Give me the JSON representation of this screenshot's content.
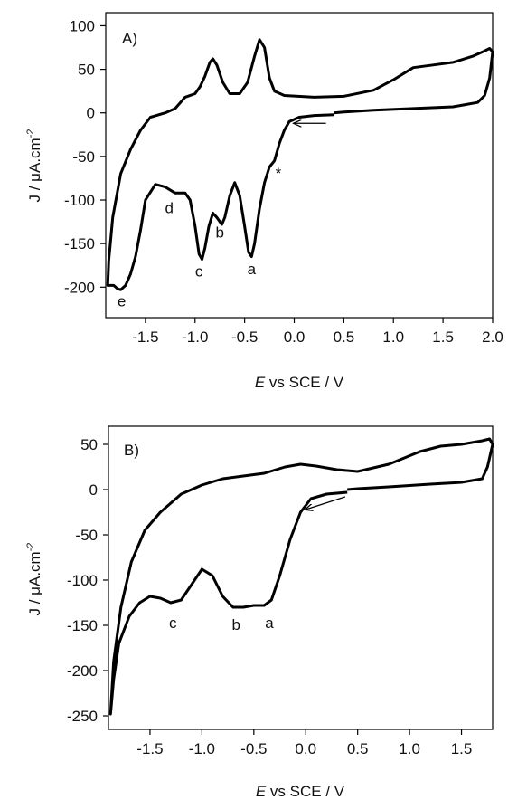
{
  "chart_data": [
    {
      "type": "line",
      "panel_label": "A)",
      "xlabel_italic": "E",
      "xlabel_rest": " vs SCE / V",
      "ylabel_main": "J / μA.cm",
      "ylabel_sup": "-2",
      "xlim": [
        -1.9,
        2.0
      ],
      "ylim": [
        -235,
        115
      ],
      "xticks": [
        -1.5,
        -1.0,
        -0.5,
        0.0,
        0.5,
        1.0,
        1.5,
        2.0
      ],
      "xtick_labels": [
        "-1.5",
        "-1.0",
        "-0.5",
        "0.0",
        "0.5",
        "1.0",
        "1.5",
        "2.0"
      ],
      "yticks": [
        -200,
        -150,
        -100,
        -50,
        0,
        50,
        100
      ],
      "ytick_labels": [
        "-200",
        "-150",
        "-100",
        "-50",
        "0",
        "50",
        "100"
      ],
      "grid": false,
      "line_color": "#000000",
      "series": [
        {
          "points": [
            [
              0.4,
              -2
            ],
            [
              0.2,
              -3
            ],
            [
              0.05,
              -5
            ],
            [
              -0.05,
              -10
            ],
            [
              -0.1,
              -20
            ],
            [
              -0.15,
              -35
            ],
            [
              -0.2,
              -55
            ],
            [
              -0.25,
              -62
            ],
            [
              -0.3,
              -80
            ],
            [
              -0.35,
              -110
            ],
            [
              -0.4,
              -150
            ],
            [
              -0.43,
              -165
            ],
            [
              -0.46,
              -160
            ],
            [
              -0.5,
              -130
            ],
            [
              -0.55,
              -95
            ],
            [
              -0.6,
              -80
            ],
            [
              -0.65,
              -95
            ],
            [
              -0.7,
              -120
            ],
            [
              -0.73,
              -128
            ],
            [
              -0.78,
              -120
            ],
            [
              -0.82,
              -115
            ],
            [
              -0.86,
              -130
            ],
            [
              -0.9,
              -155
            ],
            [
              -0.93,
              -168
            ],
            [
              -0.96,
              -162
            ],
            [
              -1.0,
              -130
            ],
            [
              -1.05,
              -100
            ],
            [
              -1.1,
              -92
            ],
            [
              -1.2,
              -92
            ],
            [
              -1.3,
              -85
            ],
            [
              -1.4,
              -82
            ],
            [
              -1.5,
              -100
            ],
            [
              -1.55,
              -135
            ],
            [
              -1.6,
              -165
            ],
            [
              -1.65,
              -185
            ],
            [
              -1.7,
              -198
            ],
            [
              -1.75,
              -203
            ],
            [
              -1.78,
              -202
            ],
            [
              -1.82,
              -198
            ],
            [
              -1.88,
              -198
            ],
            [
              -1.87,
              -170
            ],
            [
              -1.83,
              -120
            ],
            [
              -1.75,
              -70
            ],
            [
              -1.65,
              -42
            ],
            [
              -1.55,
              -20
            ],
            [
              -1.45,
              -5
            ],
            [
              -1.3,
              0
            ],
            [
              -1.2,
              5
            ],
            [
              -1.1,
              18
            ],
            [
              -1.0,
              22
            ],
            [
              -0.95,
              30
            ],
            [
              -0.9,
              42
            ],
            [
              -0.85,
              58
            ],
            [
              -0.82,
              62
            ],
            [
              -0.78,
              55
            ],
            [
              -0.72,
              35
            ],
            [
              -0.65,
              22
            ],
            [
              -0.55,
              22
            ],
            [
              -0.47,
              35
            ],
            [
              -0.4,
              65
            ],
            [
              -0.35,
              84
            ],
            [
              -0.3,
              75
            ],
            [
              -0.25,
              40
            ],
            [
              -0.2,
              25
            ],
            [
              -0.1,
              20
            ],
            [
              0.2,
              18
            ],
            [
              0.5,
              19
            ],
            [
              0.8,
              26
            ],
            [
              1.0,
              38
            ],
            [
              1.2,
              52
            ],
            [
              1.4,
              55
            ],
            [
              1.6,
              58
            ],
            [
              1.8,
              65
            ],
            [
              1.9,
              70
            ],
            [
              1.97,
              74
            ],
            [
              2.0,
              70
            ],
            [
              1.97,
              40
            ],
            [
              1.92,
              20
            ],
            [
              1.85,
              12
            ],
            [
              1.6,
              7
            ],
            [
              1.2,
              5
            ],
            [
              0.8,
              3
            ],
            [
              0.5,
              1
            ],
            [
              0.4,
              0
            ]
          ]
        }
      ],
      "annotations": [
        {
          "text": "a",
          "x": -0.43,
          "y": -185
        },
        {
          "text": "b",
          "x": -0.75,
          "y": -143
        },
        {
          "text": "c",
          "x": -0.96,
          "y": -188
        },
        {
          "text": "d",
          "x": -1.26,
          "y": -115
        },
        {
          "text": "e",
          "x": -1.74,
          "y": -222
        },
        {
          "text": "*",
          "x": -0.16,
          "y": -75
        }
      ],
      "arrow": {
        "from": [
          0.32,
          -12
        ],
        "to": [
          0.0,
          -12
        ]
      }
    },
    {
      "type": "line",
      "panel_label": "B)",
      "xlabel_italic": "E",
      "xlabel_rest": " vs SCE / V",
      "ylabel_main": "J / μA.cm",
      "ylabel_sup": "-2",
      "xlim": [
        -1.9,
        1.8
      ],
      "ylim": [
        -265,
        70
      ],
      "xticks": [
        -1.5,
        -1.0,
        -0.5,
        0.0,
        0.5,
        1.0,
        1.5
      ],
      "xtick_labels": [
        "-1.5",
        "-1.0",
        "-0.5",
        "0.0",
        "0.5",
        "1.0",
        "1.5"
      ],
      "yticks": [
        -250,
        -200,
        -150,
        -100,
        -50,
        0,
        50
      ],
      "ytick_labels": [
        "-250",
        "-200",
        "-150",
        "-100",
        "-50",
        "0",
        "50"
      ],
      "grid": false,
      "line_color": "#000000",
      "series": [
        {
          "points": [
            [
              0.4,
              -3
            ],
            [
              0.2,
              -5
            ],
            [
              0.05,
              -10
            ],
            [
              -0.05,
              -25
            ],
            [
              -0.15,
              -55
            ],
            [
              -0.25,
              -95
            ],
            [
              -0.33,
              -122
            ],
            [
              -0.4,
              -128
            ],
            [
              -0.5,
              -128
            ],
            [
              -0.6,
              -130
            ],
            [
              -0.7,
              -130
            ],
            [
              -0.8,
              -118
            ],
            [
              -0.9,
              -95
            ],
            [
              -1.0,
              -88
            ],
            [
              -1.1,
              -105
            ],
            [
              -1.2,
              -122
            ],
            [
              -1.3,
              -125
            ],
            [
              -1.4,
              -120
            ],
            [
              -1.5,
              -118
            ],
            [
              -1.6,
              -125
            ],
            [
              -1.7,
              -140
            ],
            [
              -1.8,
              -170
            ],
            [
              -1.85,
              -210
            ],
            [
              -1.88,
              -248
            ],
            [
              -1.85,
              -190
            ],
            [
              -1.78,
              -130
            ],
            [
              -1.68,
              -80
            ],
            [
              -1.55,
              -45
            ],
            [
              -1.4,
              -25
            ],
            [
              -1.2,
              -5
            ],
            [
              -1.0,
              5
            ],
            [
              -0.8,
              12
            ],
            [
              -0.6,
              15
            ],
            [
              -0.4,
              18
            ],
            [
              -0.2,
              25
            ],
            [
              -0.05,
              28
            ],
            [
              0.1,
              26
            ],
            [
              0.3,
              22
            ],
            [
              0.5,
              20
            ],
            [
              0.8,
              28
            ],
            [
              1.1,
              42
            ],
            [
              1.3,
              48
            ],
            [
              1.5,
              50
            ],
            [
              1.7,
              54
            ],
            [
              1.77,
              56
            ],
            [
              1.8,
              50
            ],
            [
              1.75,
              25
            ],
            [
              1.7,
              12
            ],
            [
              1.5,
              8
            ],
            [
              1.2,
              6
            ],
            [
              0.8,
              3
            ],
            [
              0.5,
              1
            ],
            [
              0.4,
              0
            ]
          ]
        }
      ],
      "annotations": [
        {
          "text": "a",
          "x": -0.35,
          "y": -153
        },
        {
          "text": "b",
          "x": -0.67,
          "y": -155
        },
        {
          "text": "c",
          "x": -1.28,
          "y": -153
        }
      ],
      "arrow": {
        "from": [
          0.38,
          -8
        ],
        "to": [
          0.0,
          -22
        ]
      }
    }
  ]
}
